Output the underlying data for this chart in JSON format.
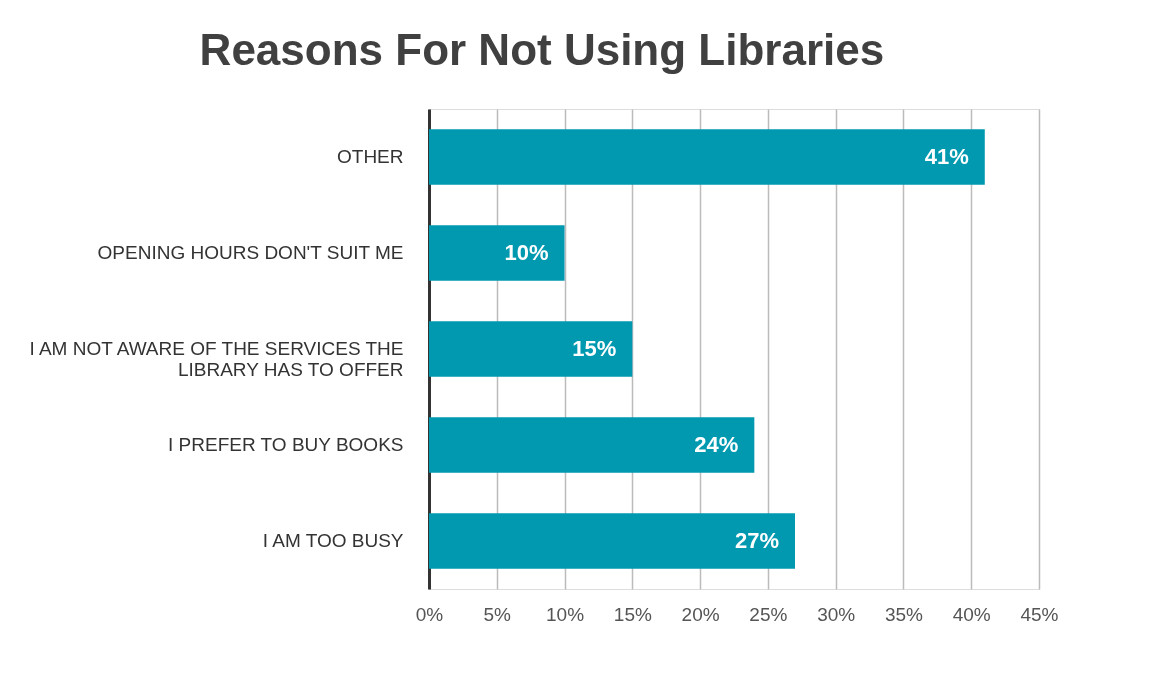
{
  "chart_data": {
    "type": "bar",
    "orientation": "horizontal",
    "title": "Reasons For Not Using Libraries",
    "categories": [
      "OTHER",
      "OPENING HOURS DON'T SUIT ME",
      "I AM NOT AWARE OF THE SERVICES THE LIBRARY HAS TO OFFER",
      "I PREFER TO BUY BOOKS",
      "I AM TOO BUSY"
    ],
    "values": [
      41,
      10,
      15,
      24,
      27
    ],
    "value_labels": [
      "41%",
      "10%",
      "15%",
      "24%",
      "27%"
    ],
    "color": "#0099b0",
    "xlim": [
      0,
      45
    ],
    "xticks": [
      {
        "value": 0,
        "label": "0%"
      },
      {
        "value": 5,
        "label": "5%"
      },
      {
        "value": 10,
        "label": "10%"
      },
      {
        "value": 15,
        "label": "15%"
      },
      {
        "value": 20,
        "label": "20%"
      },
      {
        "value": 25,
        "label": "25%"
      },
      {
        "value": 30,
        "label": "30%"
      },
      {
        "value": 35,
        "label": "35%"
      },
      {
        "value": 40,
        "label": "40%"
      },
      {
        "value": 45,
        "label": "45%"
      }
    ],
    "grid": "x"
  }
}
